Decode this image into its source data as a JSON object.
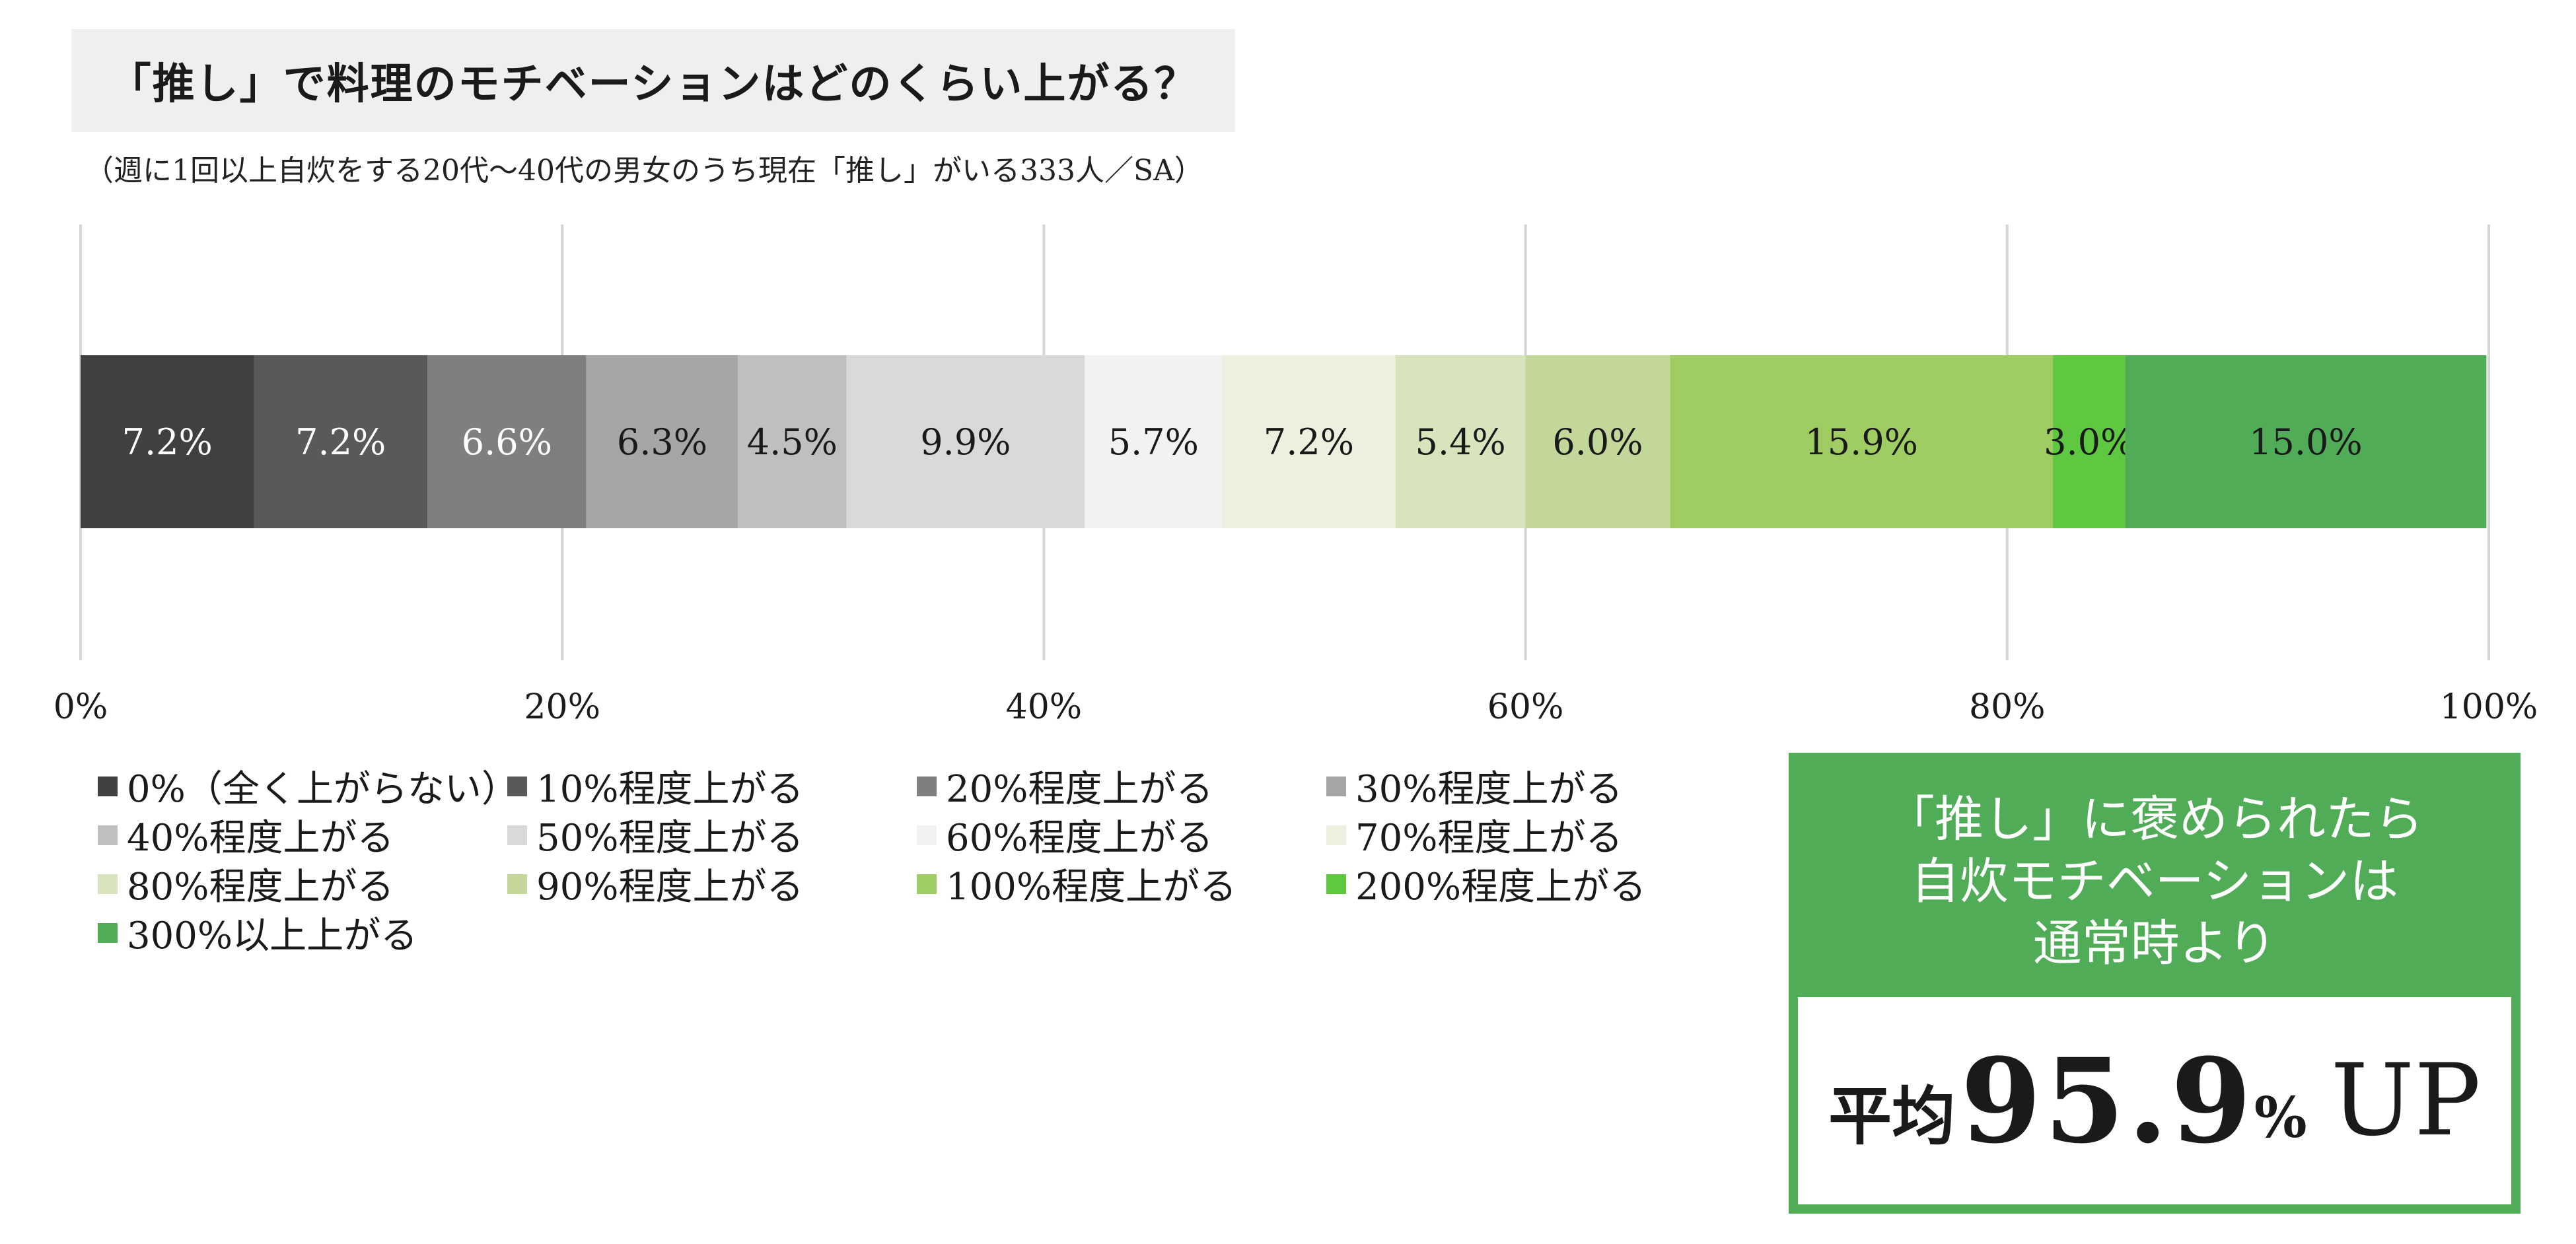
{
  "title": "「推し」で料理のモチベーションはどのくらい上がる？",
  "subtitle": "（週に1回以上自炊をする20代～40代の男女のうち現在「推し」がいる333人／SA）",
  "chart_data": {
    "type": "bar",
    "orientation": "horizontal-stacked-100",
    "categories": [
      ""
    ],
    "xlim": [
      0,
      100
    ],
    "x_ticks": [
      "0%",
      "20%",
      "40%",
      "60%",
      "80%",
      "100%"
    ],
    "grid": true,
    "legend_position": "bottom",
    "series": [
      {
        "name": "0%（全く上がらない）",
        "values": [
          7.2
        ],
        "label": "7.2%",
        "color": "#404040",
        "label_color": "#ffffff"
      },
      {
        "name": "10%程度上がる",
        "values": [
          7.2
        ],
        "label": "7.2%",
        "color": "#595959",
        "label_color": "#ffffff"
      },
      {
        "name": "20%程度上がる",
        "values": [
          6.6
        ],
        "label": "6.6%",
        "color": "#7f7f7f",
        "label_color": "#ffffff"
      },
      {
        "name": "30%程度上がる",
        "values": [
          6.3
        ],
        "label": "6.3%",
        "color": "#a6a6a6",
        "label_color": "#1a1a1a"
      },
      {
        "name": "40%程度上がる",
        "values": [
          4.5
        ],
        "label": "4.5%",
        "color": "#bfbfbf",
        "label_color": "#1a1a1a"
      },
      {
        "name": "50%程度上がる",
        "values": [
          9.9
        ],
        "label": "9.9%",
        "color": "#d9d9d9",
        "label_color": "#1a1a1a"
      },
      {
        "name": "60%程度上がる",
        "values": [
          5.7
        ],
        "label": "5.7%",
        "color": "#f2f2f2",
        "label_color": "#1a1a1a"
      },
      {
        "name": "70%程度上がる",
        "values": [
          7.2
        ],
        "label": "7.2%",
        "color": "#ebf1de",
        "label_color": "#1a1a1a"
      },
      {
        "name": "80%程度上がる",
        "values": [
          5.4
        ],
        "label": "5.4%",
        "color": "#d8e4bc",
        "label_color": "#1a1a1a"
      },
      {
        "name": "90%程度上がる",
        "values": [
          6.0
        ],
        "label": "6.0%",
        "color": "#c4d79b",
        "label_color": "#1a1a1a"
      },
      {
        "name": "100%程度上がる",
        "values": [
          15.9
        ],
        "label": "15.9%",
        "color": "#9fcd64",
        "label_color": "#1a1a1a"
      },
      {
        "name": "200%程度上がる",
        "values": [
          3.0
        ],
        "label": "3.0%",
        "color": "#5ec840",
        "label_color": "#1a1a1a"
      },
      {
        "name": "300%以上上がる",
        "values": [
          15.0
        ],
        "label": "15.0%",
        "color": "#51ac57",
        "label_color": "#1a1a1a"
      }
    ]
  },
  "callout": {
    "lines": [
      "「推し」に褒められたら",
      "自炊モチベーションは",
      "通常時より"
    ],
    "prefix": "平均",
    "number": "95.9",
    "unit": "%",
    "suffix": "UP",
    "bg_color": "#51ac57"
  }
}
